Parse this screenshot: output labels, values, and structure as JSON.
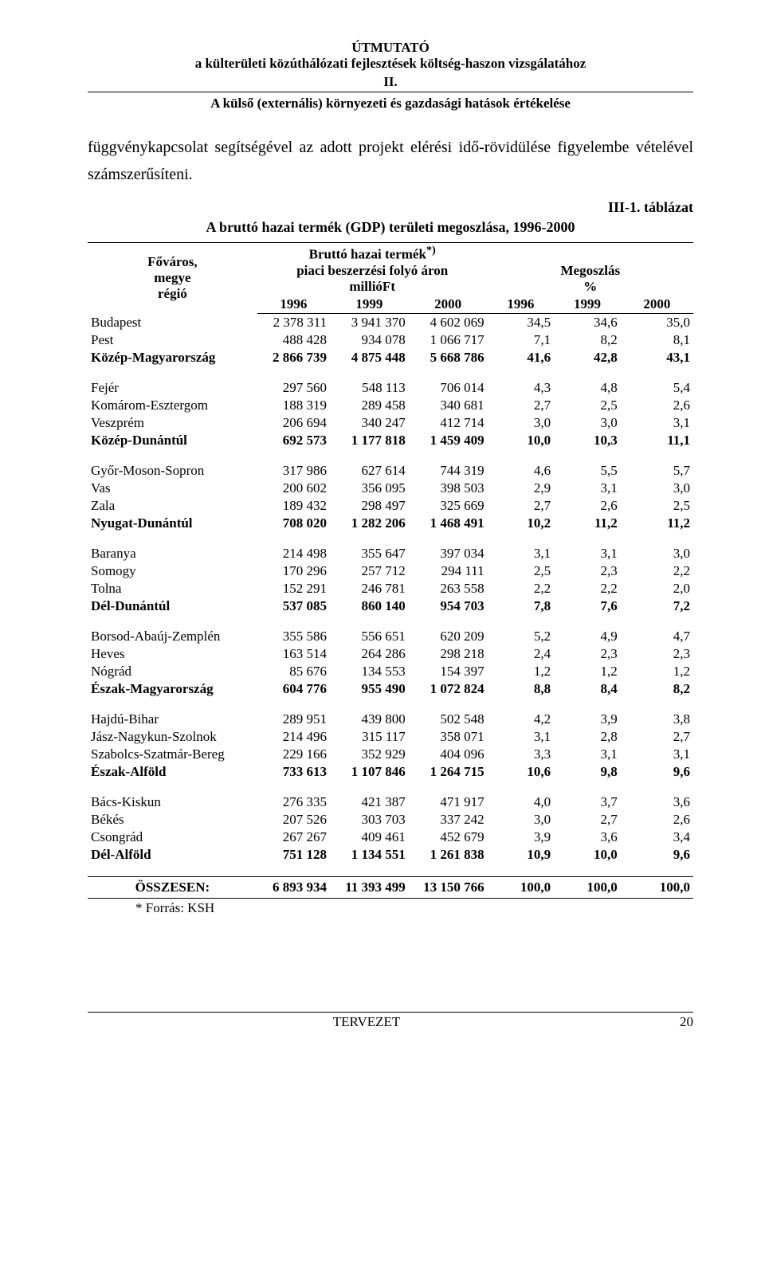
{
  "header": {
    "title_line1": "ÚTMUTATÓ",
    "title_line2": "a külterületi közúthálózati fejlesztések költség-haszon vizsgálatához",
    "title_line3": "II.",
    "subtitle": "A külső (externális) környezeti és gazdasági hatások értékelése"
  },
  "body_text": "függvénykapcsolat segítségével az adott projekt elérési idő-rövidülése figyelembe vételével számszerűsíteni.",
  "table": {
    "number": "III-1. táblázat",
    "title": "A bruttó hazai termék (GDP) területi megoszlása, 1996-2000",
    "head": {
      "col1": "Főváros,\nmegye\nrégió",
      "col_group1": "Bruttó hazai termék",
      "col_group1_sup": "*)",
      "col_group1_sub1": "piaci beszerzési folyó áron",
      "col_group1_sub2": "millióFt",
      "col_group2": "Megoszlás",
      "col_group2_sub": "%",
      "years": [
        "1996",
        "1999",
        "2000",
        "1996",
        "1999",
        "2000"
      ]
    },
    "groups": [
      {
        "rows": [
          {
            "name": "Budapest",
            "vals": [
              "2 378 311",
              "3 941 370",
              "4 602 069",
              "34,5",
              "34,6",
              "35,0"
            ]
          },
          {
            "name": "Pest",
            "vals": [
              "488 428",
              "934 078",
              "1 066 717",
              "7,1",
              "8,2",
              "8,1"
            ]
          }
        ],
        "sum": {
          "name": "Közép-Magyarország",
          "vals": [
            "2 866 739",
            "4 875 448",
            "5 668 786",
            "41,6",
            "42,8",
            "43,1"
          ]
        }
      },
      {
        "rows": [
          {
            "name": "Fejér",
            "vals": [
              "297 560",
              "548 113",
              "706 014",
              "4,3",
              "4,8",
              "5,4"
            ]
          },
          {
            "name": "Komárom-Esztergom",
            "vals": [
              "188 319",
              "289 458",
              "340 681",
              "2,7",
              "2,5",
              "2,6"
            ]
          },
          {
            "name": "Veszprém",
            "vals": [
              "206 694",
              "340 247",
              "412 714",
              "3,0",
              "3,0",
              "3,1"
            ]
          }
        ],
        "sum": {
          "name": "Közép-Dunántúl",
          "vals": [
            "692 573",
            "1 177 818",
            "1 459 409",
            "10,0",
            "10,3",
            "11,1"
          ]
        }
      },
      {
        "rows": [
          {
            "name": "Győr-Moson-Sopron",
            "vals": [
              "317 986",
              "627 614",
              "744 319",
              "4,6",
              "5,5",
              "5,7"
            ]
          },
          {
            "name": "Vas",
            "vals": [
              "200 602",
              "356 095",
              "398 503",
              "2,9",
              "3,1",
              "3,0"
            ]
          },
          {
            "name": "Zala",
            "vals": [
              "189 432",
              "298 497",
              "325 669",
              "2,7",
              "2,6",
              "2,5"
            ]
          }
        ],
        "sum": {
          "name": "Nyugat-Dunántúl",
          "vals": [
            "708 020",
            "1 282 206",
            "1 468 491",
            "10,2",
            "11,2",
            "11,2"
          ]
        }
      },
      {
        "rows": [
          {
            "name": "Baranya",
            "vals": [
              "214 498",
              "355 647",
              "397 034",
              "3,1",
              "3,1",
              "3,0"
            ]
          },
          {
            "name": "Somogy",
            "vals": [
              "170 296",
              "257 712",
              "294 111",
              "2,5",
              "2,3",
              "2,2"
            ]
          },
          {
            "name": "Tolna",
            "vals": [
              "152 291",
              "246 781",
              "263 558",
              "2,2",
              "2,2",
              "2,0"
            ]
          }
        ],
        "sum": {
          "name": "Dél-Dunántúl",
          "vals": [
            "537 085",
            "860 140",
            "954 703",
            "7,8",
            "7,6",
            "7,2"
          ]
        }
      },
      {
        "rows": [
          {
            "name": "Borsod-Abaúj-Zemplén",
            "vals": [
              "355 586",
              "556 651",
              "620 209",
              "5,2",
              "4,9",
              "4,7"
            ]
          },
          {
            "name": "Heves",
            "vals": [
              "163 514",
              "264 286",
              "298 218",
              "2,4",
              "2,3",
              "2,3"
            ]
          },
          {
            "name": "Nógrád",
            "vals": [
              "85 676",
              "134 553",
              "154 397",
              "1,2",
              "1,2",
              "1,2"
            ]
          }
        ],
        "sum": {
          "name": "Észak-Magyarország",
          "vals": [
            "604 776",
            "955 490",
            "1 072 824",
            "8,8",
            "8,4",
            "8,2"
          ]
        }
      },
      {
        "rows": [
          {
            "name": "Hajdú-Bihar",
            "vals": [
              "289 951",
              "439 800",
              "502 548",
              "4,2",
              "3,9",
              "3,8"
            ]
          },
          {
            "name": "Jász-Nagykun-Szolnok",
            "vals": [
              "214 496",
              "315 117",
              "358 071",
              "3,1",
              "2,8",
              "2,7"
            ]
          },
          {
            "name": "Szabolcs-Szatmár-Bereg",
            "vals": [
              "229 166",
              "352 929",
              "404 096",
              "3,3",
              "3,1",
              "3,1"
            ]
          }
        ],
        "sum": {
          "name": "Észak-Alföld",
          "vals": [
            "733 613",
            "1 107 846",
            "1 264 715",
            "10,6",
            "9,8",
            "9,6"
          ]
        }
      },
      {
        "rows": [
          {
            "name": "Bács-Kiskun",
            "vals": [
              "276 335",
              "421 387",
              "471 917",
              "4,0",
              "3,7",
              "3,6"
            ]
          },
          {
            "name": "Békés",
            "vals": [
              "207 526",
              "303 703",
              "337 242",
              "3,0",
              "2,7",
              "2,6"
            ]
          },
          {
            "name": "Csongrád",
            "vals": [
              "267 267",
              "409 461",
              "452 679",
              "3,9",
              "3,6",
              "3,4"
            ]
          }
        ],
        "sum": {
          "name": "Dél-Alföld",
          "vals": [
            "751 128",
            "1 134 551",
            "1 261 838",
            "10,9",
            "10,0",
            "9,6"
          ]
        }
      }
    ],
    "total": {
      "name": "ÖSSZESEN:",
      "vals": [
        "6 893 934",
        "11 393 499",
        "13 150 766",
        "100,0",
        "100,0",
        "100,0"
      ]
    },
    "footnote": "* Forrás: KSH"
  },
  "footer": {
    "center": "TERVEZET",
    "page": "20"
  },
  "colors": {
    "text": "#000000",
    "bg": "#ffffff",
    "rule": "#000000"
  }
}
